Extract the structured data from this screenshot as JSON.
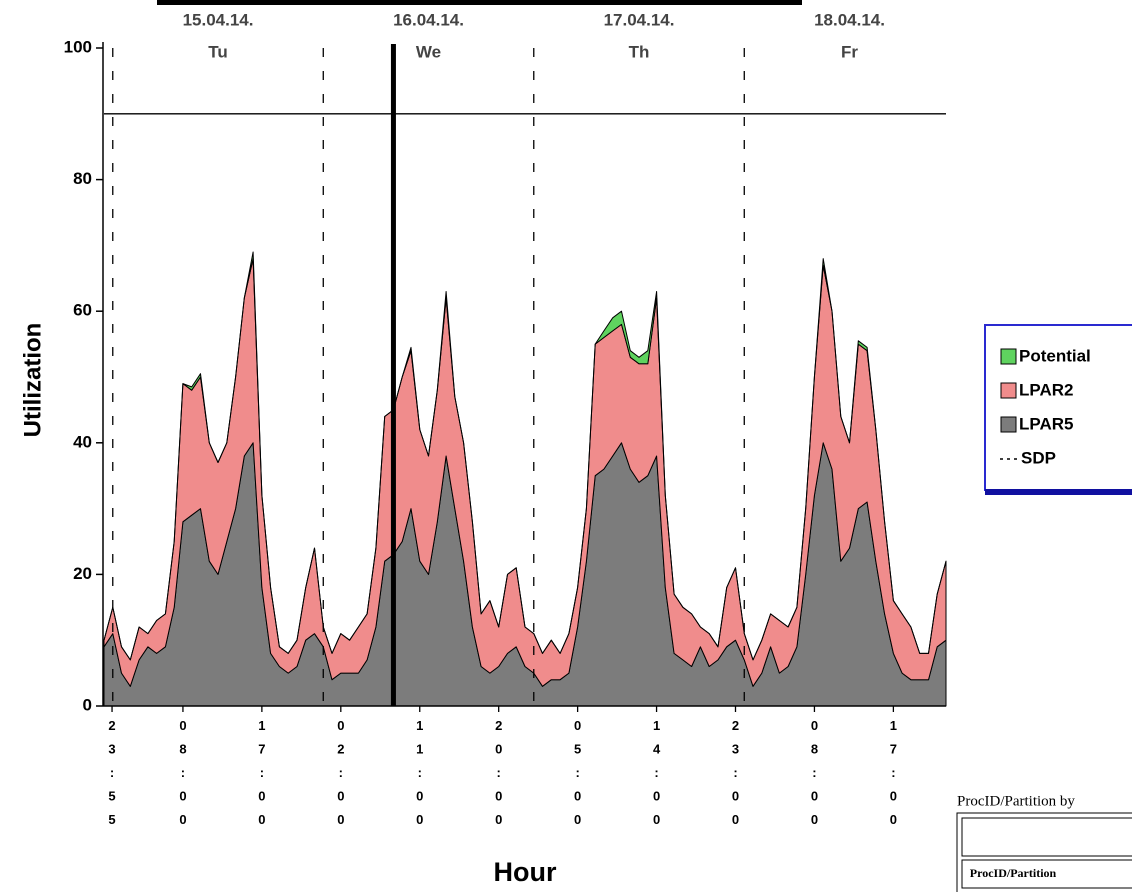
{
  "chart_data": {
    "type": "stacked_area",
    "y_label": "Utilization",
    "x_label": "Hour",
    "x": [
      -1,
      0,
      1,
      2,
      3,
      4,
      5,
      6,
      7,
      8,
      9,
      10,
      11,
      12,
      13,
      14,
      15,
      16,
      17,
      18,
      19,
      20,
      21,
      22,
      23,
      24,
      25,
      26,
      27,
      28,
      29,
      30,
      31,
      32,
      33,
      34,
      35,
      36,
      37,
      38,
      39,
      40,
      41,
      42,
      43,
      44,
      45,
      46,
      47,
      48,
      49,
      50,
      51,
      52,
      53,
      54,
      55,
      56,
      57,
      58,
      59,
      60,
      61,
      62,
      63,
      64,
      65,
      66,
      67,
      68,
      69,
      70,
      71,
      72,
      73,
      74,
      75,
      76,
      77,
      78,
      79,
      80,
      81,
      82,
      83,
      84,
      85,
      86,
      87,
      88,
      89,
      90,
      91,
      92,
      93,
      94,
      95
    ],
    "series": [
      {
        "name": "Potential",
        "color": "#5fd35f",
        "values": [
          0,
          0,
          0,
          0,
          0,
          0,
          0,
          0,
          0,
          0,
          0.5,
          0.5,
          0,
          0,
          0,
          0,
          0,
          1,
          0,
          0,
          0,
          0,
          0,
          0,
          0,
          0,
          0,
          0,
          0,
          0,
          0,
          0,
          0,
          0,
          0,
          0.5,
          0,
          0,
          0,
          1,
          0,
          0,
          0,
          0,
          0,
          0,
          0,
          0,
          0,
          0,
          0,
          0,
          0,
          0,
          0,
          0,
          0,
          1,
          2,
          2,
          1,
          1,
          2,
          1,
          0,
          0,
          0,
          0,
          0,
          0,
          0,
          0,
          0,
          0,
          0,
          0,
          0,
          0,
          0,
          0,
          0,
          0,
          1,
          0,
          0,
          0,
          0.5,
          0.5,
          0,
          0,
          0,
          0,
          0,
          0,
          0,
          0,
          0
        ]
      },
      {
        "name": "LPAR2",
        "color": "#f08c8c",
        "values": [
          1,
          4,
          4,
          4,
          5,
          2,
          5,
          5,
          10,
          21,
          19,
          20,
          18,
          17,
          15,
          20,
          24,
          28,
          14,
          10,
          3,
          3,
          4,
          8,
          13,
          3,
          4,
          6,
          5,
          7,
          7,
          12,
          22,
          22,
          25,
          24,
          20,
          18,
          20,
          24,
          17,
          18,
          16,
          8,
          11,
          6,
          12,
          12,
          6,
          6,
          5,
          6,
          4,
          6,
          6,
          8,
          20,
          20,
          19,
          18,
          17,
          18,
          17,
          24,
          14,
          9,
          8,
          8,
          3,
          5,
          2,
          9,
          11,
          4,
          4,
          5,
          5,
          8,
          6,
          6,
          10,
          18,
          27,
          24,
          22,
          16,
          25,
          23,
          20,
          14,
          8,
          9,
          8,
          4,
          4,
          8,
          12
        ]
      },
      {
        "name": "LPAR5",
        "color": "#7c7c7c",
        "values": [
          9,
          11,
          5,
          3,
          7,
          9,
          8,
          9,
          15,
          28,
          29,
          30,
          22,
          20,
          25,
          30,
          38,
          40,
          18,
          8,
          6,
          5,
          6,
          10,
          11,
          9,
          4,
          5,
          5,
          5,
          7,
          12,
          22,
          23,
          25,
          30,
          22,
          20,
          28,
          38,
          30,
          22,
          12,
          6,
          5,
          6,
          8,
          9,
          6,
          5,
          3,
          4,
          4,
          5,
          12,
          22,
          35,
          36,
          38,
          40,
          36,
          34,
          35,
          38,
          18,
          8,
          7,
          6,
          9,
          6,
          7,
          9,
          10,
          7,
          3,
          5,
          9,
          5,
          6,
          9,
          20,
          32,
          40,
          36,
          22,
          24,
          30,
          31,
          22,
          14,
          8,
          5,
          4,
          4,
          4,
          9,
          10
        ]
      }
    ],
    "sdp": {
      "name": "SDP",
      "x": [
        0,
        24,
        48,
        72
      ]
    },
    "threshold": 90,
    "now_marker": 32,
    "day_labels": [
      {
        "x": 12,
        "date": "15.04.14.",
        "day": "Tu"
      },
      {
        "x": 36,
        "date": "16.04.14.",
        "day": "We"
      },
      {
        "x": 60,
        "date": "17.04.14.",
        "day": "Th"
      },
      {
        "x": 84,
        "date": "18.04.14.",
        "day": "Fr"
      }
    ],
    "xlim": [
      -1,
      95
    ],
    "xticks": [
      {
        "value": -0.083,
        "label": "23:55"
      },
      {
        "value": 8,
        "label": "08:00"
      },
      {
        "value": 17,
        "label": "17:00"
      },
      {
        "value": 26,
        "label": "02:00"
      },
      {
        "value": 35,
        "label": "11:00"
      },
      {
        "value": 44,
        "label": "20:00"
      },
      {
        "value": 53,
        "label": "05:00"
      },
      {
        "value": 62,
        "label": "14:00"
      },
      {
        "value": 71,
        "label": "23:00"
      },
      {
        "value": 80,
        "label": "08:00"
      },
      {
        "value": 89,
        "label": "17:00"
      }
    ],
    "ylim": [
      0,
      100
    ],
    "yticks": [
      0,
      20,
      40,
      60,
      80,
      100
    ]
  },
  "table": {
    "caption": "ProcID/Partition by",
    "header": "ProcID/Partition"
  }
}
